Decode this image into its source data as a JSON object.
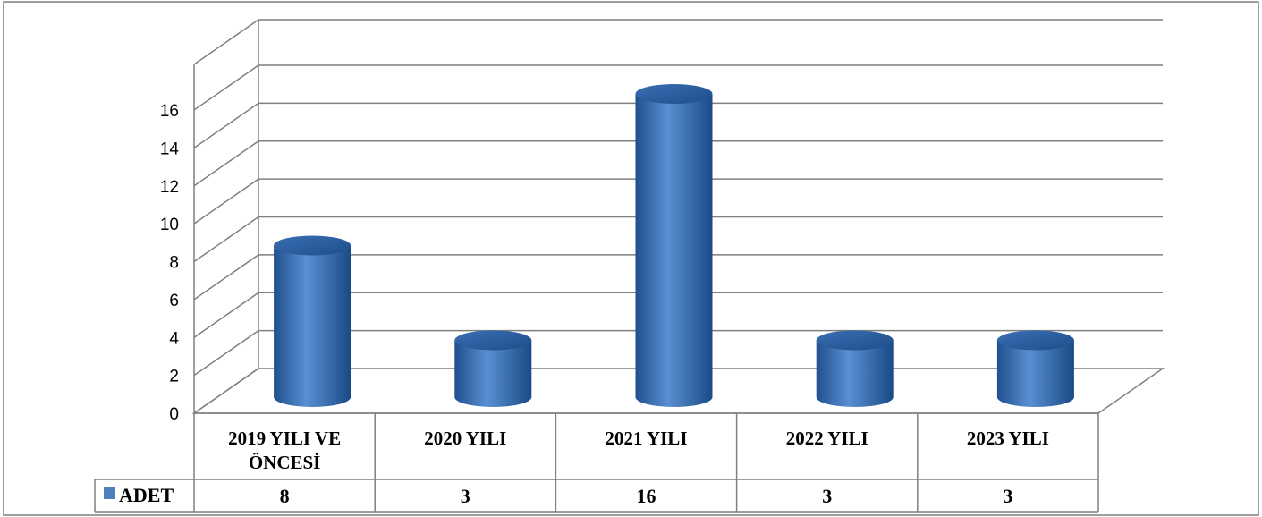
{
  "chart_data": {
    "type": "bar",
    "categories": [
      "2019 YILI VE ÖNCESİ",
      "2020 YILI",
      "2021 YILI",
      "2022 YILI",
      "2023 YILI"
    ],
    "category_lines": [
      [
        "2019 YILI VE",
        "ÖNCESİ"
      ],
      [
        "2020 YILI"
      ],
      [
        "2021 YILI"
      ],
      [
        "2022 YILI"
      ],
      [
        "2023 YILI"
      ]
    ],
    "series": [
      {
        "name": "ADET",
        "values": [
          8,
          3,
          16,
          3,
          3
        ],
        "color": "#4f81bd"
      }
    ],
    "value_labels": [
      "8",
      "3",
      "16",
      "3",
      "3"
    ],
    "yticks": [
      "0",
      "2",
      "4",
      "6",
      "8",
      "10",
      "12",
      "14",
      "16"
    ],
    "ylim": [
      0,
      16
    ],
    "grid": true,
    "legend": "data-table-left",
    "style": "3d-cylinder"
  }
}
